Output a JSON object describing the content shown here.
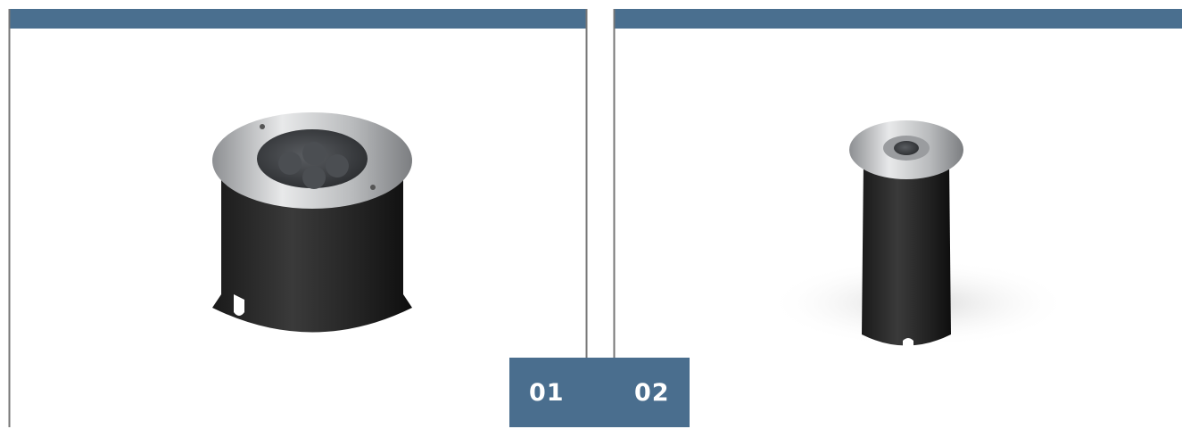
{
  "tabs": [
    "01",
    "02"
  ]
}
